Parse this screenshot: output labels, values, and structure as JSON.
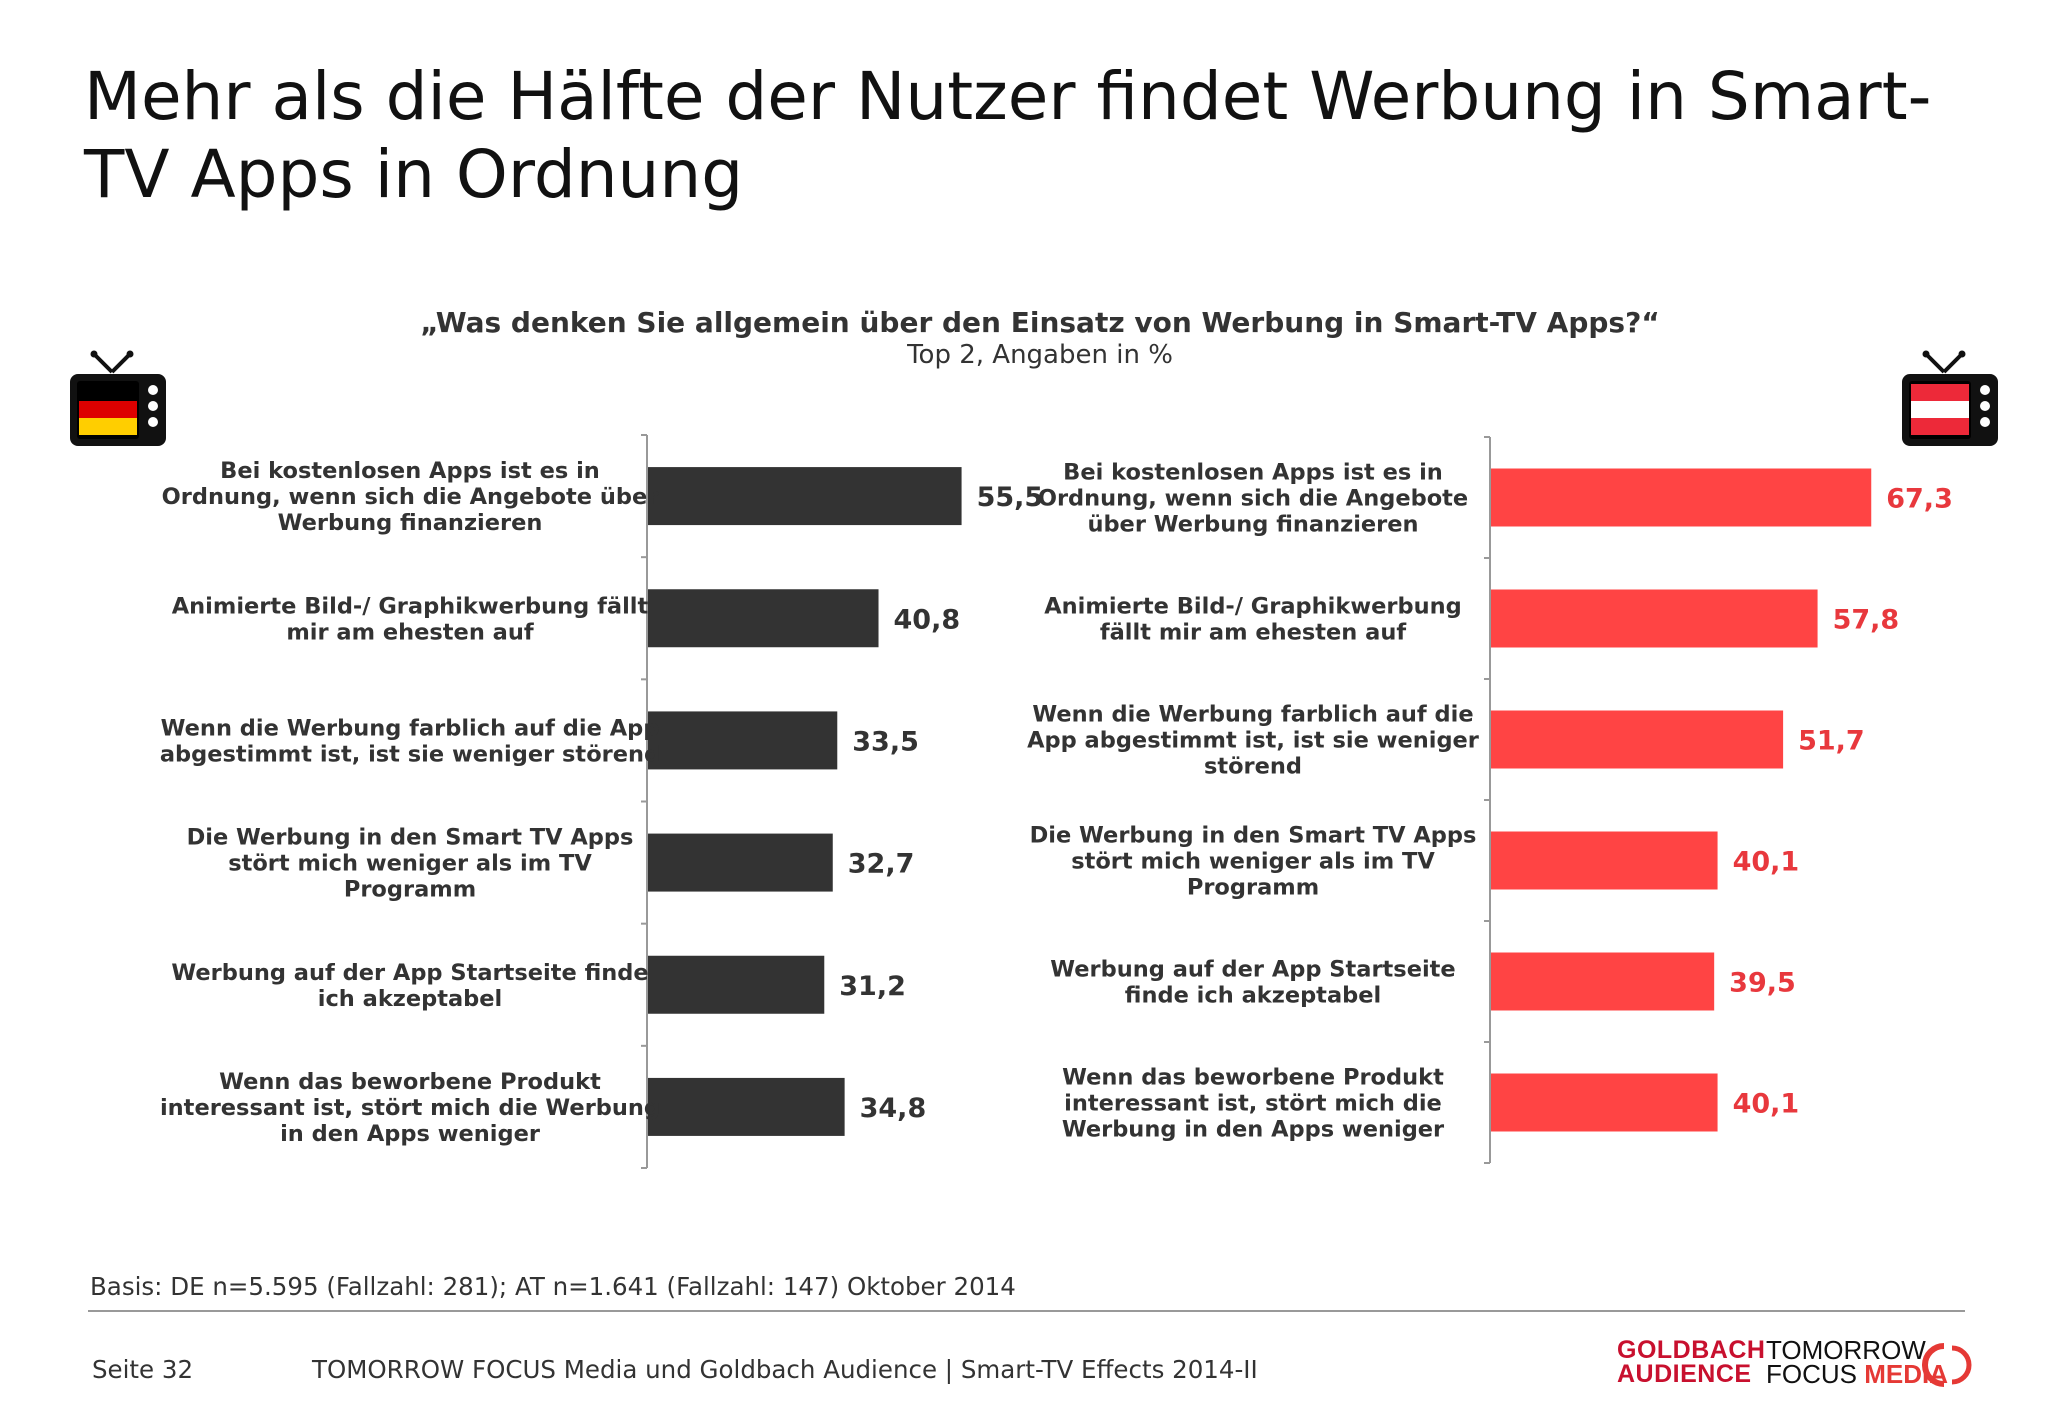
{
  "title": "Mehr als die Hälfte der Nutzer findet Werbung in Smart-TV Apps in Ordnung",
  "question": "„Was denken Sie allgemein über den Einsatz von Werbung in Smart-TV Apps?“",
  "subquestion": "Top 2, Angaben in %",
  "colors": {
    "de_bar": "#333333",
    "at_bar": "#ff4444",
    "at_value": "#e8383d"
  },
  "chart_data": [
    {
      "type": "bar",
      "orientation": "horizontal",
      "region": "DE",
      "categories": [
        "Bei kostenlosen Apps ist es in Ordnung, wenn sich die Angebote über Werbung finanzieren",
        "Animierte Bild-/ Graphikwerbung fällt mir am ehesten auf",
        "Wenn die Werbung farblich auf die App abgestimmt ist, ist sie weniger störend",
        "Die Werbung in den Smart TV Apps stört mich weniger als im TV Programm",
        "Werbung auf der App Startseite finde ich akzeptabel",
        "Wenn das beworbene Produkt interessant ist, stört mich die Werbung in den Apps weniger"
      ],
      "label_lines": [
        [
          "Bei kostenlosen Apps ist es in",
          "Ordnung, wenn sich die Angebote über",
          "Werbung finanzieren"
        ],
        [
          "Animierte Bild-/ Graphikwerbung fällt",
          "mir am ehesten auf"
        ],
        [
          "Wenn die Werbung farblich auf die App",
          "abgestimmt ist, ist sie weniger störend"
        ],
        [
          "Die Werbung in den Smart TV Apps",
          "stört mich weniger als im TV",
          "Programm"
        ],
        [
          "Werbung auf der App Startseite finde",
          "ich akzeptabel"
        ],
        [
          "Wenn das beworbene Produkt",
          "interessant ist, stört mich die Werbung",
          "in den Apps weniger"
        ]
      ],
      "values": [
        55.5,
        40.8,
        33.5,
        32.7,
        31.2,
        34.8
      ],
      "value_labels": [
        "55,5",
        "40,8",
        "33,5",
        "32,7",
        "31,2",
        "34,8"
      ],
      "xlim": [
        0,
        100
      ]
    },
    {
      "type": "bar",
      "orientation": "horizontal",
      "region": "AT",
      "categories": [
        "Bei kostenlosen Apps ist es in Ordnung, wenn sich die Angebote über Werbung finanzieren",
        "Animierte Bild-/ Graphikwerbung fällt mir am ehesten auf",
        "Wenn die Werbung farblich auf die App abgestimmt ist, ist sie weniger störend",
        "Die Werbung in den Smart TV Apps stört mich weniger als im TV Programm",
        "Werbung auf der App Startseite finde ich akzeptabel",
        "Wenn das beworbene Produkt interessant ist, stört mich die Werbung in den Apps weniger"
      ],
      "label_lines": [
        [
          "Bei kostenlosen Apps ist es in",
          "Ordnung, wenn sich die Angebote",
          "über Werbung finanzieren"
        ],
        [
          "Animierte Bild-/ Graphikwerbung",
          "fällt mir am ehesten auf"
        ],
        [
          "Wenn die Werbung farblich auf die",
          "App abgestimmt ist, ist sie weniger",
          "störend"
        ],
        [
          "Die Werbung in den Smart TV Apps",
          "stört mich weniger als im TV",
          "Programm"
        ],
        [
          "Werbung auf der App Startseite",
          "finde ich akzeptabel"
        ],
        [
          "Wenn das beworbene Produkt",
          "interessant ist, stört mich die",
          "Werbung in den Apps weniger"
        ]
      ],
      "values": [
        67.3,
        57.8,
        51.7,
        40.1,
        39.5,
        40.1
      ],
      "value_labels": [
        "67,3",
        "57,8",
        "51,7",
        "40,1",
        "39,5",
        "40,1"
      ],
      "xlim": [
        0,
        100
      ]
    }
  ],
  "footer": {
    "basis": "Basis: DE n=5.595 (Fallzahl: 281); AT n=1.641 (Fallzahl: 147) Oktober 2014",
    "page": "Seite 32",
    "source": "TOMORROW FOCUS Media und Goldbach Audience | Smart-TV Effects 2014-II"
  },
  "logos": {
    "goldbach_line1": "GOLDBACH",
    "goldbach_line2": "AUDIENCE",
    "tfm_line1": "TOMORROW",
    "tfm_line2a": "FOCUS",
    "tfm_line2b": "MEDIA"
  }
}
